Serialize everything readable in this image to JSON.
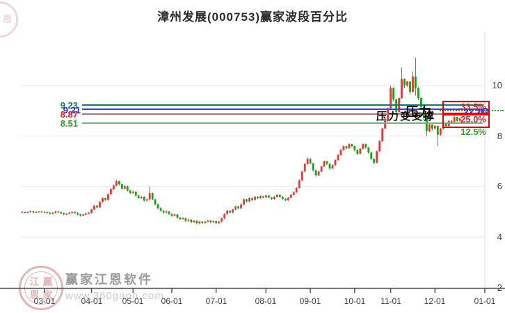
{
  "title": "漳州发展(000753)赢家波段百分比",
  "colors": {
    "up": "#f53232",
    "down": "#13a413",
    "grid": "#e8e8e8",
    "axis": "#555555",
    "axis_border": "#dcdcdc",
    "teal_line": "#0f7c6c",
    "blue_line": "#3a3af5",
    "red_line": "#bc6f6f",
    "green_line": "#78b478",
    "teal_text": "#0f7c6c",
    "blue_text": "#2d2df0",
    "red_text": "#e02020",
    "green_text": "#28a428",
    "box_red": "#f20000",
    "watermark_pink": "#dfa3a3",
    "watermark_gray": "#9a9a9a",
    "watermark_light": "#c9c9c9"
  },
  "chart_data": {
    "type": "candlestick",
    "title": "漳州发展(000753)赢家波段百分比",
    "ylim": [
      2,
      12.1
    ],
    "y_ticks": [
      2,
      4,
      6,
      8,
      10
    ],
    "x_ticks": {
      "labels": [
        "03-01",
        "04-01",
        "05-01",
        "06-01",
        "07-01",
        "08-01",
        "09-01",
        "10-01",
        "11-01",
        "12-01",
        "01-01"
      ],
      "indices": [
        8,
        25,
        40,
        54,
        70,
        88,
        104,
        120,
        133,
        149,
        167
      ]
    },
    "levels": [
      {
        "price": "9.23",
        "percent": "33.5%"
      },
      {
        "price": "9.21",
        "percent": "33.3%"
      },
      {
        "price": "8.87",
        "percent": "25.0%"
      },
      {
        "price": "8.51",
        "percent": "12.5%"
      }
    ],
    "annotations": {
      "pressure_support": "压力变支撑",
      "pressure": "压力"
    },
    "candles": [
      [
        4.98,
        5.03,
        4.95,
        5.0
      ],
      [
        5.0,
        5.03,
        4.94,
        4.97
      ],
      [
        4.97,
        5.03,
        4.94,
        5.0
      ],
      [
        5.0,
        5.06,
        4.97,
        5.03
      ],
      [
        5.03,
        5.05,
        4.95,
        4.98
      ],
      [
        4.98,
        5.04,
        4.95,
        5.0
      ],
      [
        5.0,
        5.05,
        4.97,
        5.02
      ],
      [
        5.02,
        5.04,
        4.96,
        4.99
      ],
      [
        4.99,
        5.04,
        4.96,
        5.0
      ],
      [
        5.0,
        5.02,
        4.93,
        4.97
      ],
      [
        4.97,
        5.0,
        4.9,
        4.93
      ],
      [
        4.93,
        5.0,
        4.9,
        4.97
      ],
      [
        4.97,
        5.05,
        4.94,
        5.02
      ],
      [
        5.02,
        5.04,
        4.96,
        4.99
      ],
      [
        4.99,
        5.01,
        4.92,
        4.95
      ],
      [
        4.95,
        4.98,
        4.87,
        4.9
      ],
      [
        4.9,
        4.96,
        4.87,
        4.93
      ],
      [
        4.93,
        5.0,
        4.9,
        4.97
      ],
      [
        4.97,
        5.03,
        4.94,
        5.0
      ],
      [
        5.0,
        5.02,
        4.93,
        4.96
      ],
      [
        4.96,
        4.99,
        4.87,
        4.9
      ],
      [
        4.9,
        4.93,
        4.82,
        4.86
      ],
      [
        4.86,
        4.93,
        4.83,
        4.9
      ],
      [
        4.9,
        4.97,
        4.87,
        4.94
      ],
      [
        4.94,
        5.0,
        4.91,
        4.97
      ],
      [
        4.97,
        5.13,
        4.94,
        5.1
      ],
      [
        5.1,
        5.28,
        5.07,
        5.25
      ],
      [
        5.25,
        5.27,
        5.14,
        5.18
      ],
      [
        5.18,
        5.43,
        5.15,
        5.4
      ],
      [
        5.4,
        5.58,
        5.37,
        5.55
      ],
      [
        5.55,
        5.57,
        5.44,
        5.48
      ],
      [
        5.48,
        5.73,
        5.45,
        5.7
      ],
      [
        5.7,
        5.93,
        5.67,
        5.9
      ],
      [
        5.9,
        6.08,
        5.87,
        6.05
      ],
      [
        6.05,
        6.27,
        6.02,
        6.22
      ],
      [
        6.22,
        6.24,
        6.05,
        6.1
      ],
      [
        6.1,
        6.12,
        5.88,
        5.92
      ],
      [
        5.92,
        6.06,
        5.89,
        6.02
      ],
      [
        6.02,
        6.04,
        5.81,
        5.85
      ],
      [
        5.85,
        5.88,
        5.71,
        5.75
      ],
      [
        5.75,
        5.84,
        5.72,
        5.8
      ],
      [
        5.8,
        5.82,
        5.61,
        5.65
      ],
      [
        5.65,
        5.68,
        5.51,
        5.55
      ],
      [
        5.55,
        5.64,
        5.52,
        5.6
      ],
      [
        5.6,
        5.62,
        5.41,
        5.45
      ],
      [
        5.45,
        5.54,
        5.42,
        5.5
      ],
      [
        5.5,
        6.0,
        5.47,
        5.75
      ],
      [
        5.75,
        5.77,
        5.46,
        5.5
      ],
      [
        5.5,
        5.52,
        5.26,
        5.3
      ],
      [
        5.3,
        5.33,
        5.11,
        5.15
      ],
      [
        5.15,
        5.18,
        5.01,
        5.05
      ],
      [
        5.05,
        5.08,
        4.94,
        4.98
      ],
      [
        4.98,
        5.06,
        4.95,
        5.02
      ],
      [
        5.02,
        5.04,
        4.88,
        4.92
      ],
      [
        4.92,
        4.94,
        4.81,
        4.85
      ],
      [
        4.85,
        4.93,
        4.82,
        4.9
      ],
      [
        4.9,
        4.92,
        4.74,
        4.78
      ],
      [
        4.78,
        4.8,
        4.68,
        4.72
      ],
      [
        4.72,
        4.79,
        4.69,
        4.76
      ],
      [
        4.76,
        4.78,
        4.61,
        4.65
      ],
      [
        4.65,
        4.73,
        4.62,
        4.7
      ],
      [
        4.7,
        4.72,
        4.56,
        4.6
      ],
      [
        4.6,
        4.68,
        4.57,
        4.65
      ],
      [
        4.65,
        4.67,
        4.51,
        4.55
      ],
      [
        4.55,
        4.65,
        4.52,
        4.62
      ],
      [
        4.62,
        4.64,
        4.53,
        4.57
      ],
      [
        4.57,
        4.65,
        4.54,
        4.62
      ],
      [
        4.62,
        4.69,
        4.59,
        4.66
      ],
      [
        4.66,
        4.68,
        4.56,
        4.6
      ],
      [
        4.6,
        4.67,
        4.57,
        4.64
      ],
      [
        4.64,
        4.66,
        4.52,
        4.56
      ],
      [
        4.56,
        4.65,
        4.53,
        4.62
      ],
      [
        4.62,
        4.78,
        4.59,
        4.75
      ],
      [
        4.75,
        4.95,
        4.72,
        4.92
      ],
      [
        4.92,
        5.08,
        4.89,
        5.05
      ],
      [
        5.05,
        5.07,
        4.94,
        4.98
      ],
      [
        4.98,
        5.13,
        4.95,
        5.1
      ],
      [
        5.1,
        5.25,
        5.07,
        5.22
      ],
      [
        5.22,
        5.24,
        5.11,
        5.15
      ],
      [
        5.15,
        5.33,
        5.12,
        5.3
      ],
      [
        5.3,
        5.53,
        5.27,
        5.5
      ],
      [
        5.5,
        5.52,
        5.38,
        5.42
      ],
      [
        5.42,
        5.58,
        5.39,
        5.55
      ],
      [
        5.55,
        5.57,
        5.44,
        5.48
      ],
      [
        5.48,
        5.63,
        5.45,
        5.6
      ],
      [
        5.6,
        5.62,
        5.51,
        5.55
      ],
      [
        5.55,
        5.65,
        5.52,
        5.62
      ],
      [
        5.62,
        5.64,
        5.54,
        5.58
      ],
      [
        5.58,
        5.68,
        5.55,
        5.65
      ],
      [
        5.65,
        5.67,
        5.54,
        5.58
      ],
      [
        5.58,
        5.6,
        5.48,
        5.52
      ],
      [
        5.52,
        5.63,
        5.49,
        5.6
      ],
      [
        5.6,
        5.71,
        5.57,
        5.68
      ],
      [
        5.68,
        5.7,
        5.56,
        5.6
      ],
      [
        5.6,
        5.62,
        5.48,
        5.52
      ],
      [
        5.52,
        5.54,
        5.42,
        5.46
      ],
      [
        5.46,
        5.59,
        5.43,
        5.56
      ],
      [
        5.56,
        5.71,
        5.53,
        5.68
      ],
      [
        5.68,
        5.81,
        5.65,
        5.78
      ],
      [
        5.78,
        5.98,
        5.75,
        5.95
      ],
      [
        5.95,
        6.28,
        5.92,
        6.25
      ],
      [
        6.25,
        6.63,
        6.22,
        6.6
      ],
      [
        6.6,
        6.93,
        6.57,
        6.9
      ],
      [
        6.9,
        7.15,
        6.87,
        7.1
      ],
      [
        7.1,
        7.12,
        6.88,
        6.92
      ],
      [
        6.92,
        6.94,
        6.6,
        6.65
      ],
      [
        6.65,
        6.67,
        6.4,
        6.45
      ],
      [
        6.45,
        6.63,
        6.42,
        6.6
      ],
      [
        6.6,
        6.83,
        6.57,
        6.8
      ],
      [
        6.8,
        7.03,
        6.77,
        7.0
      ],
      [
        7.0,
        7.02,
        6.85,
        6.9
      ],
      [
        6.9,
        6.92,
        6.67,
        6.72
      ],
      [
        6.72,
        6.88,
        6.69,
        6.85
      ],
      [
        6.85,
        7.08,
        6.82,
        7.05
      ],
      [
        7.05,
        7.28,
        7.02,
        7.25
      ],
      [
        7.25,
        7.48,
        7.22,
        7.45
      ],
      [
        7.45,
        7.63,
        7.42,
        7.6
      ],
      [
        7.6,
        7.62,
        7.47,
        7.52
      ],
      [
        7.52,
        7.71,
        7.49,
        7.68
      ],
      [
        7.68,
        7.7,
        7.55,
        7.6
      ],
      [
        7.6,
        7.62,
        7.4,
        7.45
      ],
      [
        7.45,
        7.47,
        7.25,
        7.3
      ],
      [
        7.3,
        7.53,
        7.27,
        7.5
      ],
      [
        7.5,
        7.71,
        7.47,
        7.68
      ],
      [
        7.68,
        7.7,
        7.5,
        7.55
      ],
      [
        7.55,
        7.57,
        7.3,
        7.35
      ],
      [
        7.35,
        7.37,
        7.05,
        7.1
      ],
      [
        7.1,
        7.12,
        6.88,
        6.95
      ],
      [
        6.95,
        7.43,
        6.92,
        7.4
      ],
      [
        7.4,
        7.83,
        7.37,
        7.8
      ],
      [
        7.8,
        8.33,
        7.77,
        8.3
      ],
      [
        8.3,
        8.63,
        8.27,
        8.6
      ],
      [
        8.6,
        9.13,
        8.57,
        9.1
      ],
      [
        9.1,
        10.0,
        9.05,
        9.9
      ],
      [
        9.9,
        9.92,
        9.38,
        9.45
      ],
      [
        9.45,
        9.47,
        8.82,
        8.95
      ],
      [
        8.95,
        9.53,
        8.9,
        9.5
      ],
      [
        9.5,
        10.7,
        9.47,
        10.25
      ],
      [
        10.25,
        10.28,
        9.9,
        10.0
      ],
      [
        10.0,
        10.18,
        9.95,
        10.15
      ],
      [
        10.15,
        10.17,
        9.65,
        9.75
      ],
      [
        9.75,
        10.55,
        9.72,
        10.35
      ],
      [
        10.35,
        11.1,
        9.6,
        9.9
      ],
      [
        9.9,
        9.93,
        9.42,
        9.5
      ],
      [
        9.5,
        9.53,
        9.05,
        9.15
      ],
      [
        9.15,
        9.18,
        8.62,
        8.7
      ],
      [
        8.7,
        8.73,
        8.0,
        8.2
      ],
      [
        8.2,
        8.48,
        8.15,
        8.45
      ],
      [
        8.45,
        8.47,
        8.22,
        8.3
      ],
      [
        8.3,
        8.44,
        8.26,
        8.4
      ],
      [
        8.4,
        8.42,
        7.6,
        8.05
      ],
      [
        8.05,
        8.33,
        8.0,
        8.3
      ],
      [
        8.3,
        8.53,
        8.26,
        8.5
      ],
      [
        8.5,
        8.52,
        8.33,
        8.4
      ],
      [
        8.4,
        8.63,
        8.36,
        8.6
      ],
      [
        8.6,
        8.62,
        8.48,
        8.55
      ],
      [
        8.55,
        8.78,
        8.51,
        8.75
      ],
      [
        8.75,
        8.77,
        8.54,
        8.6
      ],
      [
        8.6,
        8.73,
        8.55,
        8.7
      ]
    ]
  },
  "watermark": {
    "seal_chars": [
      "江",
      "赢",
      "恩",
      "家"
    ],
    "seal_char_top": "恩",
    "brand": "赢家江恩软件",
    "url": "www.360gann.com"
  }
}
